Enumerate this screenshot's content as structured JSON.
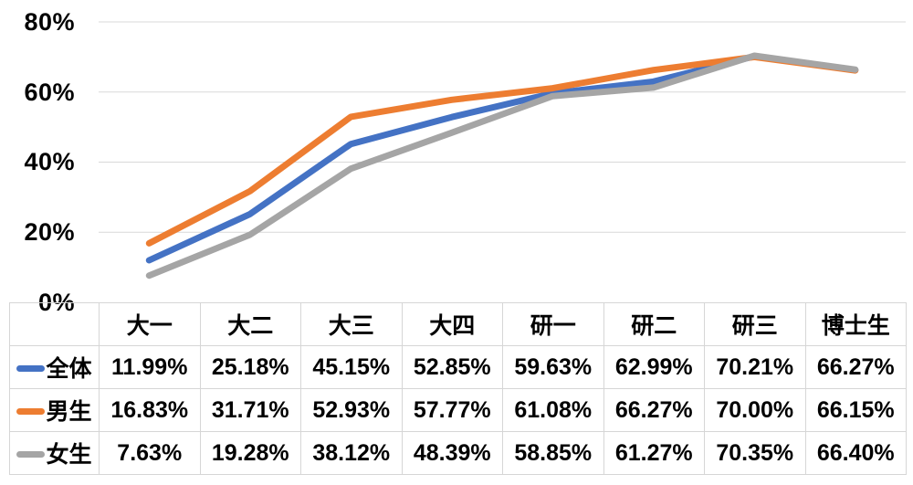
{
  "chart_data": {
    "type": "line",
    "categories": [
      "大一",
      "大二",
      "大三",
      "大四",
      "研一",
      "研二",
      "研三",
      "博士生"
    ],
    "series": [
      {
        "name": "全体",
        "color": "#4472C4",
        "values": [
          11.99,
          25.18,
          45.15,
          52.85,
          59.63,
          62.99,
          70.21,
          66.27
        ]
      },
      {
        "name": "男生",
        "color": "#ED7D31",
        "values": [
          16.83,
          31.71,
          52.93,
          57.77,
          61.08,
          66.27,
          70.0,
          66.15
        ]
      },
      {
        "name": "女生",
        "color": "#A5A5A5",
        "values": [
          7.63,
          19.28,
          38.12,
          48.39,
          58.85,
          61.27,
          70.35,
          66.4
        ]
      }
    ],
    "title": "",
    "xlabel": "",
    "ylabel": "",
    "ylim": [
      0,
      80
    ],
    "yticks": [
      "80%",
      "60%",
      "40%",
      "20%",
      "0%"
    ],
    "grid": true,
    "gridline_color": "#d9d9d9",
    "line_width": 7,
    "legend_position": "data-table-row-headers"
  },
  "table": {
    "columns": [
      "大一",
      "大二",
      "大三",
      "大四",
      "研一",
      "研二",
      "研三",
      "博士生"
    ],
    "rows": [
      {
        "label": "全体",
        "color": "#4472C4",
        "values": [
          "11.99%",
          "25.18%",
          "45.15%",
          "52.85%",
          "59.63%",
          "62.99%",
          "70.21%",
          "66.27%"
        ]
      },
      {
        "label": "男生",
        "color": "#ED7D31",
        "values": [
          "16.83%",
          "31.71%",
          "52.93%",
          "57.77%",
          "61.08%",
          "66.27%",
          "70.00%",
          "66.15%"
        ]
      },
      {
        "label": "女生",
        "color": "#A5A5A5",
        "values": [
          "7.63%",
          "19.28%",
          "38.12%",
          "48.39%",
          "58.85%",
          "61.27%",
          "70.35%",
          "66.40%"
        ]
      }
    ]
  }
}
